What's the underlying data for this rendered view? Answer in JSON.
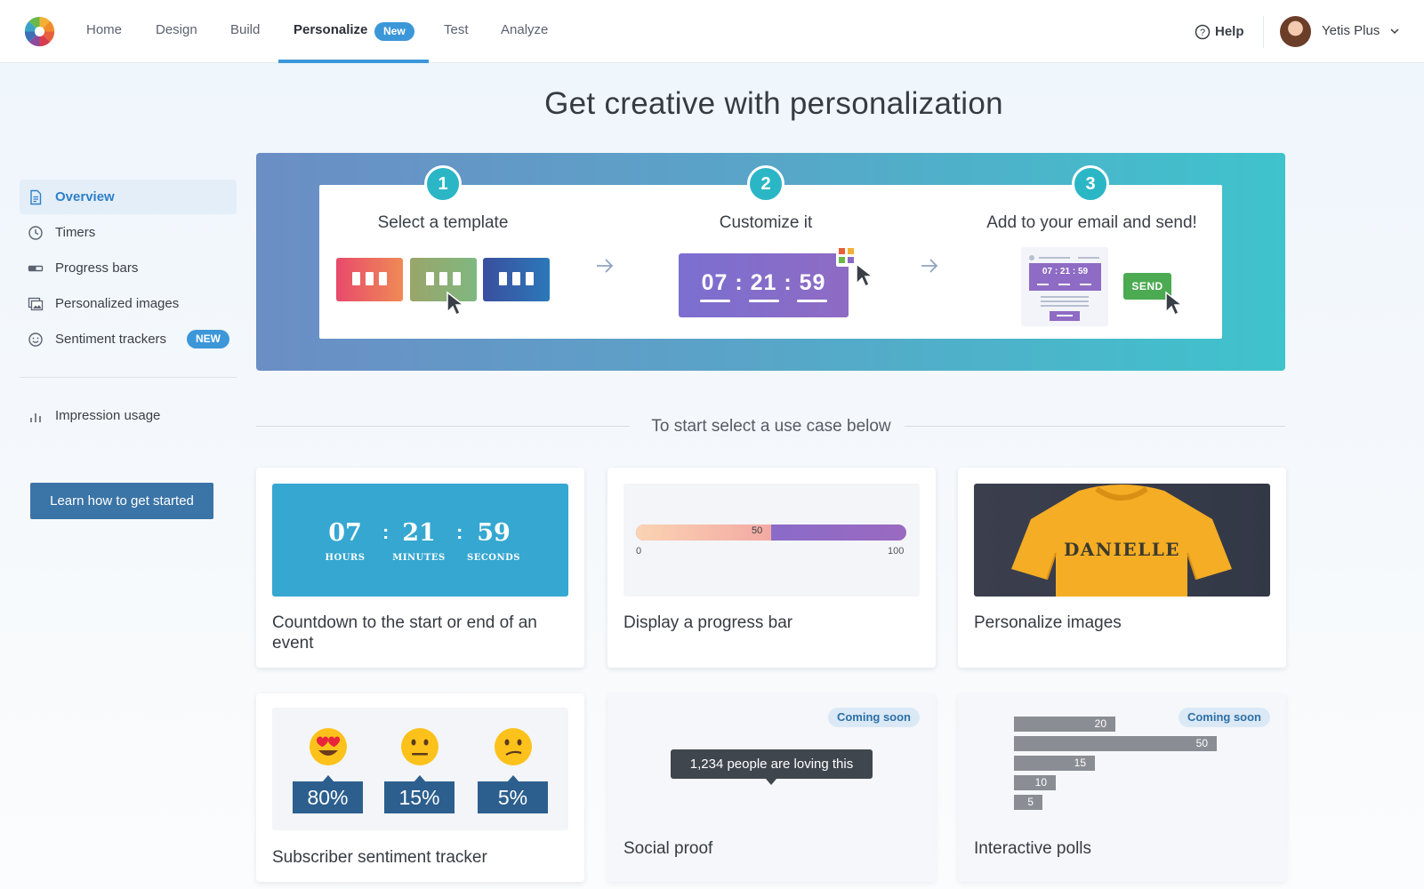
{
  "nav": {
    "items": [
      "Home",
      "Design",
      "Build",
      "Personalize",
      "Test",
      "Analyze"
    ],
    "active": "Personalize",
    "new_badge": "New",
    "help": "Help",
    "user": "Yetis Plus"
  },
  "page": {
    "title": "Get creative with personalization"
  },
  "sidebar": {
    "items": [
      {
        "label": "Overview",
        "icon": "document-icon",
        "active": true
      },
      {
        "label": "Timers",
        "icon": "clock-icon"
      },
      {
        "label": "Progress bars",
        "icon": "progress-bar-icon"
      },
      {
        "label": "Personalized images",
        "icon": "images-icon"
      },
      {
        "label": "Sentiment trackers",
        "icon": "smiley-icon",
        "badge": "NEW"
      },
      {
        "label": "Impression usage",
        "icon": "bar-chart-icon"
      }
    ],
    "cta": "Learn how to get started"
  },
  "steps": [
    {
      "num": "1",
      "title": "Select a template"
    },
    {
      "num": "2",
      "title": "Customize it",
      "timer": "07 : 21 : 59"
    },
    {
      "num": "3",
      "title": "Add to your email and send!",
      "mini_timer": "07 : 21 : 59",
      "send": "SEND"
    }
  ],
  "use_case_label": "To start select a use case below",
  "cards": {
    "countdown": {
      "title": "Countdown to the start or end of an event",
      "hours": "07",
      "minutes": "21",
      "seconds": "59",
      "hours_label": "HOURS",
      "minutes_label": "MINUTES",
      "seconds_label": "SECONDS"
    },
    "progress": {
      "title": "Display a progress bar",
      "value": 50,
      "value_label": "50",
      "min": "0",
      "max": "100"
    },
    "images": {
      "title": "Personalize images",
      "shirt_text": "DANIELLE"
    },
    "sentiment": {
      "title": "Subscriber sentiment tracker",
      "pcts": [
        "80%",
        "15%",
        "5%"
      ]
    },
    "social": {
      "title": "Social proof",
      "tooltip": "1,234 people are loving this",
      "badge": "Coming soon"
    },
    "polls": {
      "title": "Interactive polls",
      "badge": "Coming soon",
      "bars": [
        "20",
        "50",
        "15",
        "10",
        "5"
      ]
    }
  },
  "colors": {
    "accent": "#3c97d9",
    "button": "#3b74a6",
    "send": "#4caa52"
  }
}
